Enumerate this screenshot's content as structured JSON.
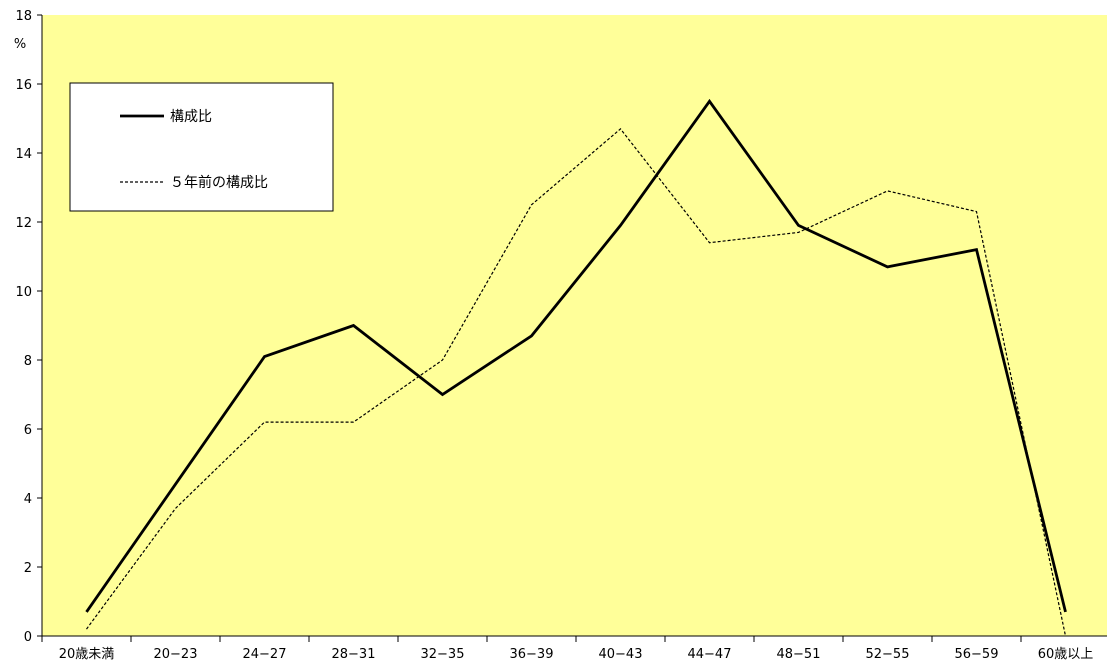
{
  "chart_data": {
    "type": "line",
    "title": "",
    "xlabel": "",
    "ylabel": "%",
    "ylim": [
      0,
      18
    ],
    "yticks": [
      0,
      2,
      4,
      6,
      8,
      10,
      12,
      14,
      16,
      18
    ],
    "grid": false,
    "plot_background": "#ffff99",
    "legend_position": "top-left",
    "categories": [
      "20歳未満",
      "20−23",
      "24−27",
      "28−31",
      "32−35",
      "36−39",
      "40−43",
      "44−47",
      "48−51",
      "52−55",
      "56−59",
      "60歳以上"
    ],
    "series": [
      {
        "name": "構成比",
        "style": "solid",
        "color": "#000000",
        "values": [
          0.7,
          4.4,
          8.1,
          9.0,
          7.0,
          8.7,
          11.9,
          15.5,
          11.9,
          10.7,
          11.2,
          0.7
        ]
      },
      {
        "name": "５年前の構成比",
        "style": "dashed",
        "color": "#000000",
        "values": [
          0.2,
          3.7,
          6.2,
          6.2,
          8.0,
          12.5,
          14.7,
          11.4,
          11.7,
          12.9,
          12.3,
          0.0
        ]
      }
    ]
  }
}
